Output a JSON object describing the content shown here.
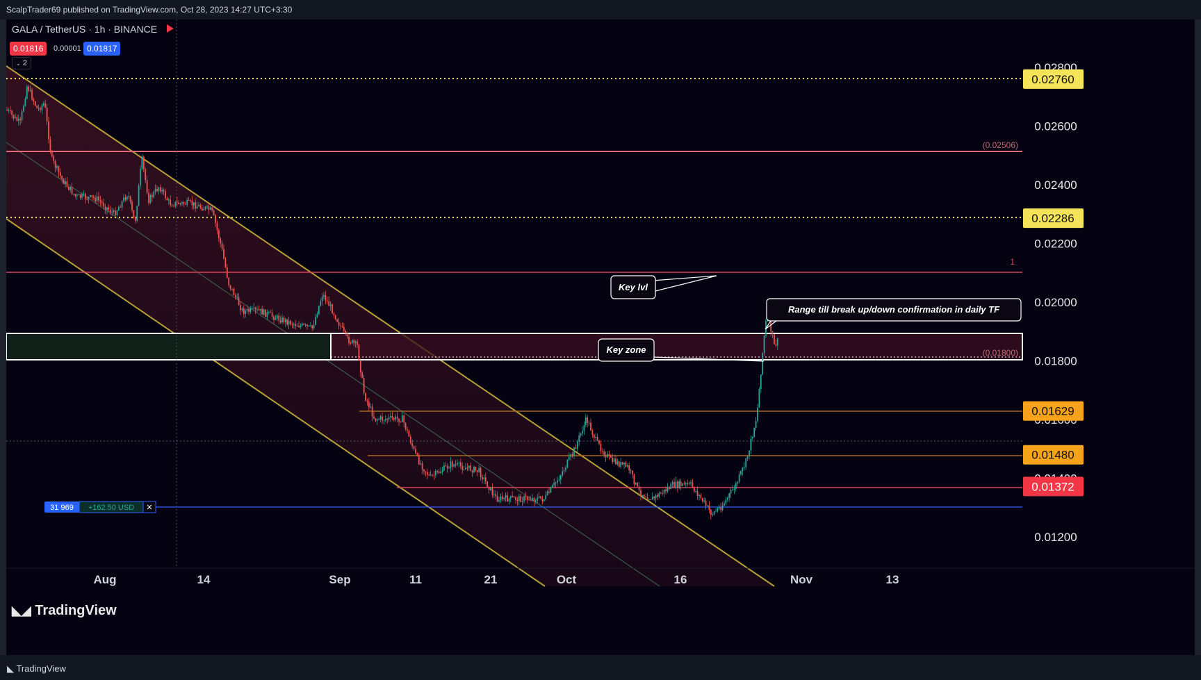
{
  "header": {
    "published": "ScalpTrader69 published on TradingView.com, Oct 28, 2023 14:27 UTC+3:30"
  },
  "symbol": {
    "name": "GALA / TetherUS · 1h · BINANCE",
    "bid": "0.01816",
    "spread": "0.00001",
    "ask": "0.01817",
    "indicator_count": "2"
  },
  "colors": {
    "background": "#050312",
    "up": "#26a69a",
    "down": "#ef5350",
    "gold": "#b8a035",
    "red_line": "#d9425b",
    "yellow": "#f5e35a",
    "orange": "#f7a21b",
    "pink": "#f23645",
    "blue": "#2962ff"
  },
  "price_axis": {
    "ticks": [
      "0.02800",
      "0.02600",
      "0.02400",
      "0.02200",
      "0.02000",
      "0.01800",
      "0.01600",
      "0.01400",
      "0.01200"
    ]
  },
  "price_badges": [
    {
      "value": "0.02760",
      "style": "yellow"
    },
    {
      "value": "0.02286",
      "style": "yellow"
    },
    {
      "value": "0.01629",
      "style": "orange"
    },
    {
      "value": "0.01480",
      "style": "orange"
    },
    {
      "value": "0.01372",
      "style": "pink"
    }
  ],
  "level_labels": {
    "upper": "(0.02506)",
    "key": "(0.01800)",
    "fib": "1"
  },
  "time_axis": {
    "labels": [
      "Aug",
      "14",
      "Sep",
      "11",
      "21",
      "Oct",
      "16",
      "Nov",
      "13"
    ]
  },
  "annotations": {
    "key_lvl": "Key lvl",
    "key_zone": "Key zone",
    "range": "Range till break up/down confirmation in daily TF"
  },
  "position": {
    "qty": "31 969",
    "pnl": "+162.50 USD",
    "close": "✕"
  },
  "watermark": "TradingView",
  "footer": {
    "logo": "TradingView"
  }
}
